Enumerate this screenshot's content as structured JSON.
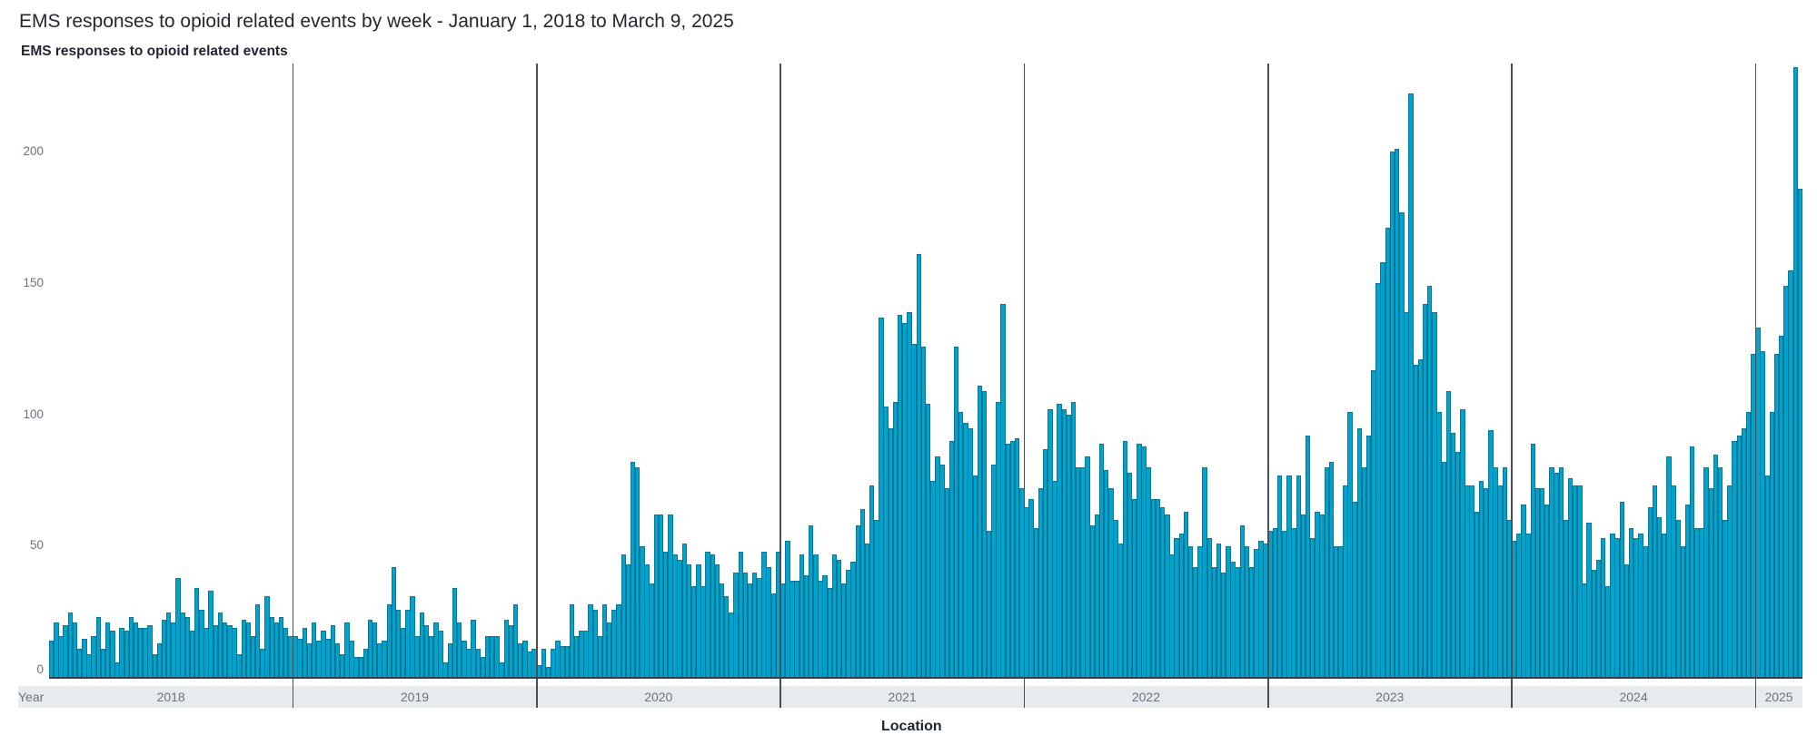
{
  "header": {
    "title": "EMS responses to opioid related events by week - January 1, 2018 to March 9, 2025",
    "subtitle": "EMS responses to opioid related events"
  },
  "axis": {
    "x_group_label": "Year",
    "footer_label": "Location",
    "y_ticks": [
      {
        "label": "200",
        "value": 200
      },
      {
        "label": "150",
        "value": 150
      },
      {
        "label": "100",
        "value": 100
      },
      {
        "label": "50",
        "value": 50
      },
      {
        "label": "0",
        "value": 0
      }
    ]
  },
  "colors": {
    "bar_fill": "#00a3cc",
    "bar_outline": "#0b7796",
    "divider": "#4a4f56",
    "year_band": "#e8ebee"
  },
  "chart_data": {
    "type": "bar",
    "title": "EMS responses to opioid related events by week - January 1, 2018 to March 9, 2025",
    "subtitle": "EMS responses to opioid related events",
    "xlabel": "Year",
    "ylabel": "",
    "ylim": [
      0,
      235
    ],
    "grid": false,
    "legend": "none",
    "x_group_labels": [
      "2018",
      "2019",
      "2020",
      "2021",
      "2022",
      "2023",
      "2024",
      "2025"
    ],
    "series": [
      {
        "name": "2018",
        "values": [
          14,
          21,
          16,
          20,
          25,
          21,
          11,
          15,
          9,
          16,
          23,
          11,
          21,
          18,
          6,
          19,
          18,
          23,
          21,
          19,
          19,
          20,
          9,
          13,
          22,
          25,
          21,
          38,
          25,
          23,
          18,
          34,
          26,
          19,
          33,
          20,
          25,
          21,
          20,
          19,
          9,
          22,
          21,
          16,
          28,
          11,
          31,
          23,
          21,
          23,
          19,
          16
        ]
      },
      {
        "name": "2019",
        "values": [
          16,
          15,
          19,
          13,
          21,
          14,
          18,
          15,
          20,
          13,
          9,
          21,
          14,
          8,
          8,
          11,
          22,
          21,
          13,
          14,
          28,
          42,
          26,
          19,
          26,
          31,
          16,
          25,
          20,
          16,
          21,
          18,
          6,
          13,
          34,
          21,
          14,
          11,
          22,
          11,
          8,
          16,
          16,
          16,
          6,
          22,
          20,
          28,
          13,
          14,
          10,
          11
        ]
      },
      {
        "name": "2020",
        "values": [
          5,
          11,
          4,
          11,
          14,
          12,
          12,
          28,
          16,
          18,
          18,
          28,
          26,
          16,
          28,
          21,
          26,
          28,
          47,
          43,
          82,
          80,
          50,
          43,
          36,
          62,
          62,
          48,
          62,
          47,
          45,
          51,
          43,
          35,
          43,
          35,
          48,
          47,
          43,
          36,
          31,
          25,
          40,
          48,
          40,
          36,
          40,
          38,
          48,
          42,
          32,
          48
        ]
      },
      {
        "name": "2021",
        "values": [
          36,
          52,
          37,
          37,
          47,
          39,
          58,
          47,
          37,
          39,
          34,
          47,
          45,
          36,
          41,
          44,
          58,
          64,
          51,
          73,
          60,
          137,
          103,
          95,
          105,
          138,
          135,
          139,
          127,
          161,
          126,
          104,
          75,
          84,
          81,
          72,
          90,
          126,
          101,
          97,
          95,
          77,
          111,
          109,
          56,
          81,
          105,
          142,
          89,
          90,
          91,
          72
        ]
      },
      {
        "name": "2022",
        "values": [
          65,
          68,
          57,
          72,
          87,
          102,
          75,
          104,
          102,
          100,
          105,
          80,
          80,
          84,
          58,
          62,
          89,
          79,
          72,
          60,
          51,
          90,
          78,
          68,
          89,
          88,
          80,
          68,
          68,
          65,
          62,
          47,
          53,
          55,
          63,
          50,
          42,
          50,
          80,
          53,
          42,
          51,
          40,
          50,
          44,
          42,
          58,
          50,
          42,
          49,
          52,
          51
        ]
      },
      {
        "name": "2023",
        "values": [
          56,
          57,
          77,
          56,
          77,
          57,
          77,
          62,
          92,
          53,
          63,
          62,
          80,
          82,
          50,
          50,
          73,
          101,
          67,
          95,
          80,
          92,
          117,
          150,
          158,
          171,
          200,
          201,
          177,
          139,
          222,
          119,
          121,
          142,
          149,
          139,
          101,
          82,
          109,
          93,
          86,
          102,
          73,
          73,
          63,
          75,
          72,
          94,
          80,
          73,
          80,
          60
        ]
      },
      {
        "name": "2024",
        "values": [
          52,
          55,
          66,
          55,
          89,
          72,
          72,
          66,
          80,
          78,
          80,
          60,
          76,
          73,
          73,
          36,
          59,
          41,
          45,
          53,
          35,
          55,
          53,
          67,
          43,
          57,
          53,
          55,
          50,
          65,
          73,
          61,
          55,
          84,
          73,
          60,
          50,
          66,
          88,
          57,
          57,
          80,
          72,
          85,
          80,
          60,
          73,
          90,
          92,
          95,
          101,
          123
        ]
      },
      {
        "name": "2025",
        "values": [
          133,
          124,
          77,
          101,
          123,
          130,
          149,
          155,
          232,
          186
        ]
      }
    ]
  }
}
